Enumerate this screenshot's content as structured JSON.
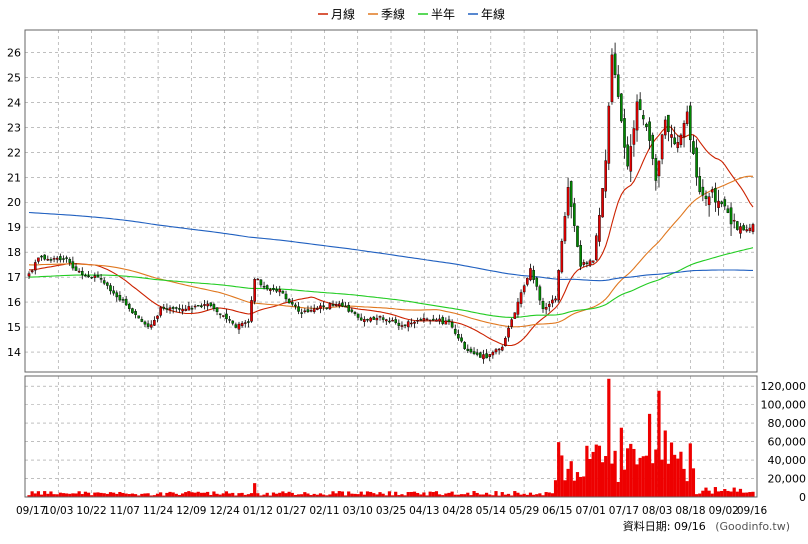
{
  "legend": {
    "items": [
      {
        "label": "月線",
        "color": "#cc2200"
      },
      {
        "label": "季線",
        "color": "#e07820"
      },
      {
        "label": "半年",
        "color": "#22cc22"
      },
      {
        "label": "年線",
        "color": "#2060c0"
      }
    ]
  },
  "footer": {
    "date_label": "資料日期: 09/16",
    "source": "(Goodinfo.tw)"
  },
  "colors": {
    "up": "#e00000",
    "down": "#008800",
    "volume": "#ee0000",
    "grid": "#999999"
  },
  "chart_data": [
    {
      "type": "candlestick",
      "title": "",
      "price_axis": {
        "ticks": [
          14,
          15,
          16,
          17,
          18,
          19,
          20,
          21,
          22,
          23,
          24,
          25,
          26
        ],
        "ylim": [
          13.2,
          26.9
        ]
      },
      "x_tick_labels": [
        "09/17",
        "10/03",
        "10/22",
        "11/07",
        "11/24",
        "12/09",
        "12/24",
        "01/12",
        "01/27",
        "02/11",
        "03/10",
        "03/25",
        "04/13",
        "04/28",
        "05/14",
        "05/29",
        "06/15",
        "07/01",
        "07/17",
        "08/03",
        "08/18",
        "09/02",
        "09/16"
      ],
      "close_keypoints": [
        {
          "x": 0,
          "close": 17.1
        },
        {
          "x": 3,
          "close": 17.8
        },
        {
          "x": 12,
          "close": 17.7
        },
        {
          "x": 15,
          "close": 17.2
        },
        {
          "x": 22,
          "close": 17.0
        },
        {
          "x": 30,
          "close": 16.0
        },
        {
          "x": 38,
          "close": 15.0
        },
        {
          "x": 42,
          "close": 15.7
        },
        {
          "x": 50,
          "close": 15.8
        },
        {
          "x": 58,
          "close": 15.9
        },
        {
          "x": 66,
          "close": 15.0
        },
        {
          "x": 70,
          "close": 15.2
        },
        {
          "x": 72,
          "close": 17.0
        },
        {
          "x": 75,
          "close": 16.6
        },
        {
          "x": 80,
          "close": 16.5
        },
        {
          "x": 86,
          "close": 15.6
        },
        {
          "x": 92,
          "close": 15.8
        },
        {
          "x": 100,
          "close": 15.9
        },
        {
          "x": 106,
          "close": 15.3
        },
        {
          "x": 112,
          "close": 15.4
        },
        {
          "x": 118,
          "close": 15.1
        },
        {
          "x": 126,
          "close": 15.3
        },
        {
          "x": 134,
          "close": 15.2
        },
        {
          "x": 140,
          "close": 14.0
        },
        {
          "x": 146,
          "close": 13.8
        },
        {
          "x": 151,
          "close": 14.2
        },
        {
          "x": 156,
          "close": 16.0
        },
        {
          "x": 160,
          "close": 17.4
        },
        {
          "x": 164,
          "close": 15.7
        },
        {
          "x": 168,
          "close": 16.2
        },
        {
          "x": 172,
          "close": 20.7
        },
        {
          "x": 176,
          "close": 17.5
        },
        {
          "x": 180,
          "close": 17.6
        },
        {
          "x": 184,
          "close": 21.8
        },
        {
          "x": 186,
          "close": 25.9
        },
        {
          "x": 188,
          "close": 24.2
        },
        {
          "x": 191,
          "close": 21.4
        },
        {
          "x": 194,
          "close": 24.0
        },
        {
          "x": 197,
          "close": 23.0
        },
        {
          "x": 200,
          "close": 21.0
        },
        {
          "x": 203,
          "close": 23.4
        },
        {
          "x": 206,
          "close": 22.3
        },
        {
          "x": 210,
          "close": 23.4
        },
        {
          "x": 214,
          "close": 20.3
        },
        {
          "x": 218,
          "close": 20.4
        },
        {
          "x": 222,
          "close": 19.7
        },
        {
          "x": 226,
          "close": 18.9
        },
        {
          "x": 231,
          "close": 19.2
        }
      ],
      "moving_averages": [
        {
          "name": "月線",
          "period": 20
        },
        {
          "name": "季線",
          "period": 60
        },
        {
          "name": "半年",
          "period": 120
        },
        {
          "name": "年線",
          "period": 240
        }
      ]
    },
    {
      "type": "bar",
      "title": "",
      "volume_axis": {
        "ticks": [
          0,
          20000,
          40000,
          60000,
          80000,
          100000,
          120000
        ],
        "tick_labels": [
          "0",
          "20,000",
          "40,000",
          "60,000",
          "80,000",
          "100,000",
          "120,000"
        ],
        "ylim": [
          0,
          131000
        ]
      },
      "volume_spikes": [
        {
          "x": 72,
          "value": 15000
        },
        {
          "x": 170,
          "value": 45000
        },
        {
          "x": 175,
          "value": 27000
        },
        {
          "x": 185,
          "value": 128000
        },
        {
          "x": 187,
          "value": 50000
        },
        {
          "x": 189,
          "value": 75000
        },
        {
          "x": 193,
          "value": 52000
        },
        {
          "x": 198,
          "value": 90000
        },
        {
          "x": 201,
          "value": 115000
        },
        {
          "x": 203,
          "value": 72000
        }
      ]
    }
  ]
}
